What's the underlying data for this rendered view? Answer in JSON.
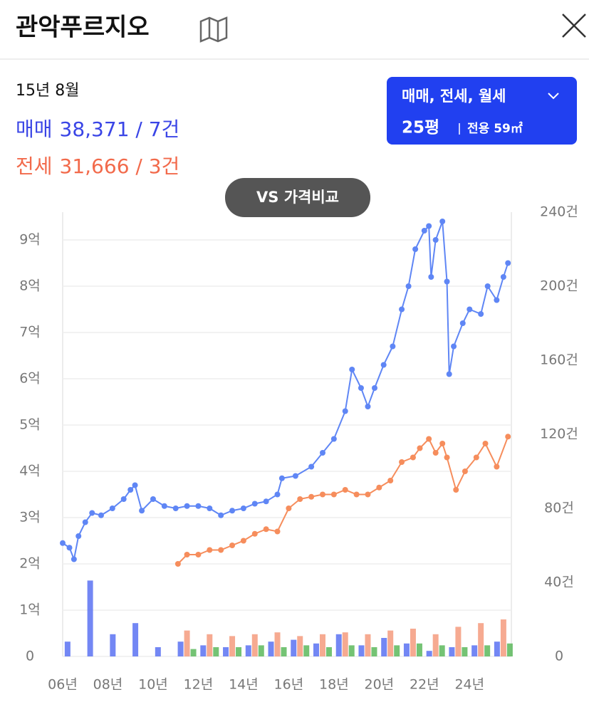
{
  "header": {
    "title": "관악푸르지오"
  },
  "readout": {
    "date": "15년 8월",
    "rows": [
      {
        "label": "매매",
        "value": "38,371 / 7건",
        "color": "#3a45e6"
      },
      {
        "label": "전세",
        "value": "31,666 / 3건",
        "color": "#f26a4b"
      }
    ]
  },
  "filter": {
    "types": "매매, 전세, 월세",
    "size": "25평",
    "area": "전용 59㎡"
  },
  "compare_button": "VS 가격비교",
  "chart_data": {
    "type": "line",
    "xlim": [
      2006,
      2025.85
    ],
    "ylim": [
      0,
      9.6
    ],
    "y2lim": [
      0,
      240
    ],
    "xticks": [
      {
        "value": 2006,
        "label": "06년"
      },
      {
        "value": 2008,
        "label": "08년"
      },
      {
        "value": 2010,
        "label": "10년"
      },
      {
        "value": 2012,
        "label": "12년"
      },
      {
        "value": 2014,
        "label": "14년"
      },
      {
        "value": 2016,
        "label": "16년"
      },
      {
        "value": 2018,
        "label": "18년"
      },
      {
        "value": 2020,
        "label": "20년"
      },
      {
        "value": 2022,
        "label": "22년"
      },
      {
        "value": 2024,
        "label": "24년"
      }
    ],
    "yticks": [
      0,
      {
        "value": 1,
        "label": "1억"
      },
      {
        "value": 2,
        "label": "2억"
      },
      {
        "value": 3,
        "label": "3억"
      },
      {
        "value": 4,
        "label": "4억"
      },
      {
        "value": 5,
        "label": "5억"
      },
      {
        "value": 6,
        "label": "6억"
      },
      {
        "value": 7,
        "label": "7억"
      },
      {
        "value": 8,
        "label": "8억"
      },
      {
        "value": 9,
        "label": "9억"
      }
    ],
    "y2ticks": [
      0,
      {
        "value": 40,
        "label": "40건"
      },
      {
        "value": 80,
        "label": "80건"
      },
      {
        "value": 120,
        "label": "120건"
      },
      {
        "value": 160,
        "label": "160건"
      },
      {
        "value": 200,
        "label": "200건"
      },
      {
        "value": 240,
        "label": "240건"
      }
    ],
    "grid": true,
    "series": [
      {
        "type": "bar",
        "axis": "y2",
        "color": "#5b72f2",
        "x": [
          2006.5,
          2007.5,
          2008.5,
          2009.5,
          2010.5,
          2011.5,
          2012.5,
          2013.5,
          2014.5,
          2015.5,
          2016.5,
          2017.5,
          2018.5,
          2019.5,
          2020.5,
          2021.5,
          2022.5,
          2023.5,
          2024.5,
          2025.5
        ],
        "values": [
          8,
          41,
          12,
          18,
          5,
          8,
          6,
          5,
          6,
          8,
          9,
          7,
          12,
          6,
          10,
          7,
          3,
          5,
          6,
          8
        ]
      },
      {
        "type": "bar",
        "axis": "y2",
        "color": "#f59b7e",
        "x": [
          2011.5,
          2012.5,
          2013.5,
          2014.5,
          2015.5,
          2016.5,
          2017.5,
          2018.5,
          2019.5,
          2020.5,
          2021.5,
          2022.5,
          2023.5,
          2024.5,
          2025.5
        ],
        "values": [
          14,
          12,
          11,
          12,
          13,
          11,
          12,
          13,
          12,
          14,
          15,
          12,
          16,
          18,
          20
        ]
      },
      {
        "type": "bar",
        "axis": "y2",
        "color": "#5cb85c",
        "x": [
          2011.5,
          2012.5,
          2013.5,
          2014.5,
          2015.5,
          2016.5,
          2017.5,
          2018.5,
          2019.5,
          2020.5,
          2021.5,
          2022.5,
          2023.5,
          2024.5,
          2025.5
        ],
        "values": [
          4,
          5,
          5,
          6,
          5,
          6,
          5,
          6,
          5,
          6,
          7,
          6,
          5,
          6,
          7
        ]
      },
      {
        "type": "line",
        "color": "#5f86f5",
        "x": [
          2006.0,
          2006.3,
          2006.5,
          2006.7,
          2007.0,
          2007.3,
          2007.7,
          2008.2,
          2008.7,
          2009.0,
          2009.2,
          2009.5,
          2010.0,
          2010.5,
          2011.0,
          2011.5,
          2012.0,
          2012.5,
          2013.0,
          2013.5,
          2014.0,
          2014.5,
          2015.0,
          2015.5,
          2015.7,
          2016.3,
          2017.0,
          2017.5,
          2018.0,
          2018.5,
          2018.8,
          2019.2,
          2019.5,
          2019.8,
          2020.2,
          2020.6,
          2021.0,
          2021.3,
          2021.6,
          2022.0,
          2022.2,
          2022.3,
          2022.5,
          2022.8,
          2023.0,
          2023.1,
          2023.3,
          2023.7,
          2024.0,
          2024.5,
          2024.8,
          2025.2,
          2025.5,
          2025.7
        ],
        "values": [
          2.45,
          2.35,
          2.1,
          2.6,
          2.9,
          3.1,
          3.05,
          3.2,
          3.4,
          3.6,
          3.7,
          3.15,
          3.4,
          3.25,
          3.2,
          3.25,
          3.25,
          3.2,
          3.05,
          3.15,
          3.2,
          3.3,
          3.35,
          3.5,
          3.85,
          3.9,
          4.1,
          4.4,
          4.7,
          5.3,
          6.2,
          5.8,
          5.4,
          5.8,
          6.3,
          6.7,
          7.5,
          8.0,
          8.8,
          9.2,
          9.3,
          8.2,
          9.0,
          9.4,
          8.1,
          6.1,
          6.7,
          7.2,
          7.5,
          7.4,
          8.0,
          7.7,
          8.2,
          8.5
        ]
      },
      {
        "type": "line",
        "color": "#f68d5c",
        "x": [
          2011.1,
          2011.5,
          2012.0,
          2012.5,
          2013.0,
          2013.5,
          2014.0,
          2014.5,
          2015.0,
          2015.5,
          2016.0,
          2016.5,
          2017.0,
          2017.5,
          2018.0,
          2018.5,
          2019.0,
          2019.5,
          2020.0,
          2020.5,
          2021.0,
          2021.5,
          2021.8,
          2022.2,
          2022.5,
          2022.8,
          2023.0,
          2023.4,
          2023.8,
          2024.3,
          2024.7,
          2025.2,
          2025.7
        ],
        "values": [
          2.0,
          2.2,
          2.2,
          2.3,
          2.3,
          2.4,
          2.5,
          2.65,
          2.75,
          2.7,
          3.2,
          3.4,
          3.45,
          3.5,
          3.5,
          3.6,
          3.5,
          3.5,
          3.65,
          3.8,
          4.2,
          4.3,
          4.5,
          4.7,
          4.4,
          4.6,
          4.3,
          3.6,
          4.0,
          4.3,
          4.6,
          4.1,
          4.75
        ]
      }
    ]
  }
}
